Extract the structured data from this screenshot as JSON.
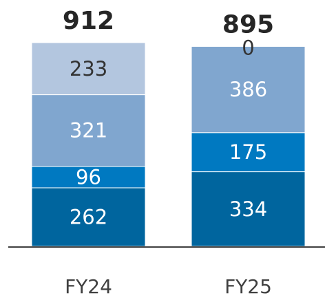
{
  "chart_data": {
    "type": "stacked_bar",
    "categories": [
      "FY24",
      "FY25"
    ],
    "totals": [
      912,
      895
    ],
    "series": [
      {
        "color": "#00659e",
        "label_color": "#ffffff",
        "values": [
          262,
          334
        ]
      },
      {
        "color": "#0079c1",
        "label_color": "#ffffff",
        "values": [
          96,
          175
        ]
      },
      {
        "color": "#80a6cf",
        "label_color": "#ffffff",
        "values": [
          321,
          386
        ]
      },
      {
        "color": "#b3c6df",
        "label_color": "#333333",
        "values": [
          233,
          0
        ]
      }
    ]
  }
}
